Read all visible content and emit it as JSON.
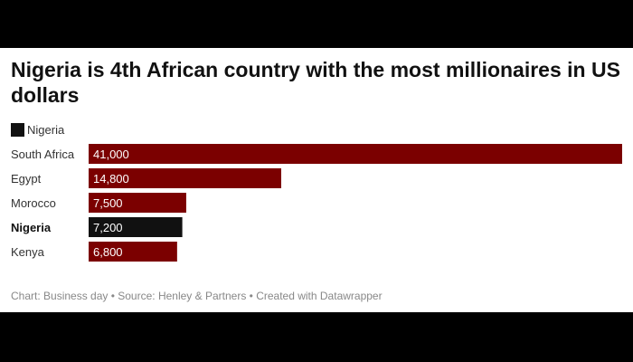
{
  "chart_data": {
    "type": "bar",
    "orientation": "horizontal",
    "title": "Nigeria is 4th African country with the most millionaires in US dollars",
    "categories": [
      "South Africa",
      "Egypt",
      "Morocco",
      "Nigeria",
      "Kenya"
    ],
    "values": [
      41000,
      14800,
      7500,
      7200,
      6800
    ],
    "value_labels": [
      "41,000",
      "14,800",
      "7,500",
      "7,200",
      "6,800"
    ],
    "highlight": "Nigeria",
    "xlim": [
      0,
      41000
    ],
    "legend": [
      {
        "label": "Nigeria",
        "color": "#111111"
      }
    ],
    "colors": {
      "default": "#7b0000",
      "highlight": "#111111"
    },
    "xlabel": "",
    "ylabel": "",
    "source": "Chart: Business day • Source: Henley & Partners • Created with Datawrapper"
  }
}
